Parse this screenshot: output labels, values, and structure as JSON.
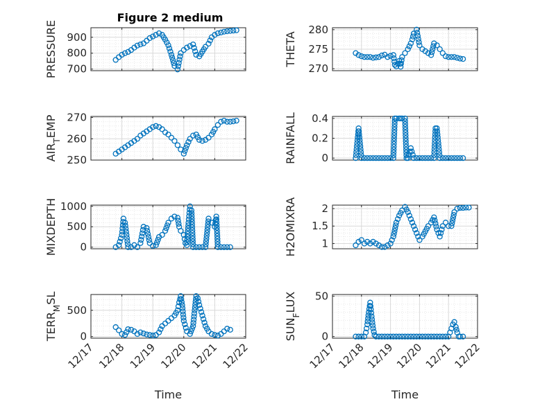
{
  "colors": {
    "marker": "#0072BD",
    "axis": "#262626",
    "grid": "#d9d9d9",
    "background": "#ffffff"
  },
  "chart_data": [
    {
      "type": "scatter",
      "title": "Figure 2 medium",
      "ylabel": "PRESSURE",
      "xlabel": "",
      "xlim": [
        "12/17",
        "12/22"
      ],
      "ylim": [
        690,
        960
      ],
      "yticks": [
        "700",
        "800",
        "900"
      ],
      "xticklabels_shown": false,
      "grid": "on",
      "x": [
        17.8,
        17.9,
        18.0,
        18.1,
        18.2,
        18.3,
        18.4,
        18.5,
        18.6,
        18.7,
        18.8,
        18.9,
        19.0,
        19.1,
        19.2,
        19.3,
        19.4,
        19.5,
        19.6,
        19.7,
        19.8,
        19.9,
        20.0,
        20.1,
        20.2,
        20.3,
        20.4,
        20.5,
        20.6,
        20.7,
        20.8,
        20.9,
        21.0,
        21.1,
        21.2,
        21.3,
        21.4,
        21.5,
        21.6,
        21.7
      ],
      "y": [
        758,
        775,
        790,
        800,
        808,
        820,
        835,
        848,
        855,
        862,
        878,
        895,
        905,
        915,
        925,
        915,
        885,
        850,
        790,
        720,
        698,
        800,
        820,
        835,
        845,
        855,
        790,
        780,
        810,
        840,
        860,
        900,
        915,
        925,
        930,
        935,
        938,
        940,
        942,
        944
      ]
    },
    {
      "type": "scatter",
      "ylabel": "THETA",
      "xlabel": "",
      "xlim": [
        "12/17",
        "12/22"
      ],
      "ylim": [
        269.5,
        280.5
      ],
      "yticks": [
        "270",
        "275",
        "280"
      ],
      "xticklabels_shown": false,
      "grid": "on",
      "x": [
        17.8,
        17.9,
        18.0,
        18.1,
        18.2,
        18.3,
        18.4,
        18.5,
        18.6,
        18.7,
        18.8,
        18.9,
        19.0,
        19.1,
        19.15,
        19.2,
        19.3,
        19.35,
        19.4,
        19.5,
        19.6,
        19.7,
        19.75,
        19.8,
        19.9,
        20.0,
        20.1,
        20.2,
        20.3,
        20.4,
        20.5,
        20.6,
        20.7,
        20.8,
        20.9,
        21.0,
        21.1,
        21.2,
        21.3,
        21.4,
        21.5
      ],
      "y": [
        274.0,
        273.5,
        273.2,
        273.0,
        273.0,
        273.0,
        272.8,
        272.9,
        273.0,
        273.4,
        273.6,
        273.0,
        273.3,
        273.5,
        271.0,
        270.6,
        272.0,
        270.5,
        273.0,
        274.0,
        275.0,
        276.5,
        277.5,
        279.0,
        280.0,
        276.0,
        275.0,
        274.5,
        274.0,
        273.5,
        276.5,
        276.0,
        275.0,
        274.0,
        273.2,
        273.0,
        273.0,
        273.0,
        272.8,
        272.6,
        272.5
      ]
    },
    {
      "type": "scatter",
      "ylabel": "AIR_TEMP",
      "xlabel": "",
      "xlim": [
        "12/17",
        "12/22"
      ],
      "ylim": [
        250,
        270.5
      ],
      "yticks": [
        "250",
        "260",
        "270"
      ],
      "xticklabels_shown": false,
      "grid": "on",
      "x": [
        17.8,
        17.9,
        18.0,
        18.1,
        18.2,
        18.3,
        18.4,
        18.5,
        18.6,
        18.7,
        18.8,
        18.9,
        19.0,
        19.1,
        19.2,
        19.3,
        19.4,
        19.5,
        19.6,
        19.7,
        19.8,
        19.9,
        20.0,
        20.1,
        20.2,
        20.3,
        20.4,
        20.5,
        20.6,
        20.7,
        20.8,
        20.9,
        21.0,
        21.1,
        21.2,
        21.3,
        21.4,
        21.5,
        21.6,
        21.7
      ],
      "y": [
        253.0,
        254.0,
        255.0,
        256.0,
        257.0,
        258.0,
        259.0,
        260.0,
        261.5,
        262.5,
        263.5,
        264.5,
        265.5,
        266.0,
        265.5,
        264.5,
        263.0,
        262.0,
        260.5,
        259.0,
        257.0,
        255.0,
        253.0,
        257.0,
        260.0,
        261.5,
        262.0,
        259.5,
        259.0,
        259.5,
        260.5,
        262.0,
        264.5,
        266.5,
        268.0,
        268.5,
        268.0,
        268.0,
        268.2,
        268.5
      ]
    },
    {
      "type": "scatter",
      "ylabel": "RAINFALL",
      "xlabel": "",
      "xlim": [
        "12/17",
        "12/22"
      ],
      "ylim": [
        -0.02,
        0.42
      ],
      "yticks": [
        "0",
        "0.2",
        "0.4"
      ],
      "xticklabels_shown": false,
      "grid": "on",
      "x": [
        17.8,
        17.9,
        18.0,
        18.1,
        18.2,
        18.3,
        18.4,
        18.5,
        18.6,
        18.7,
        18.8,
        18.9,
        19.0,
        19.1,
        19.15,
        19.2,
        19.3,
        19.35,
        19.4,
        19.5,
        19.55,
        19.6,
        19.7,
        19.8,
        19.9,
        20.0,
        20.1,
        20.2,
        20.3,
        20.4,
        20.5,
        20.55,
        20.6,
        20.7,
        20.8,
        20.9,
        21.0,
        21.1,
        21.2,
        21.3,
        21.4,
        21.5
      ],
      "y": [
        0,
        0.3,
        0,
        0,
        0,
        0,
        0,
        0,
        0,
        0,
        0,
        0,
        0,
        0,
        0.4,
        0.4,
        0.4,
        0.4,
        0.4,
        0.4,
        0,
        0,
        0.1,
        0,
        0,
        0,
        0,
        0,
        0,
        0,
        0,
        0.3,
        0.3,
        0,
        0,
        0,
        0,
        0,
        0,
        0,
        0,
        0
      ]
    },
    {
      "type": "scatter",
      "ylabel": "MIXDEPTH",
      "xlabel": "",
      "xlim": [
        "12/17",
        "12/22"
      ],
      "ylim": [
        -40,
        1030
      ],
      "yticks": [
        "0",
        "500",
        "1000"
      ],
      "xticklabels_shown": false,
      "grid": "on",
      "x": [
        17.8,
        17.9,
        18.0,
        18.05,
        18.1,
        18.15,
        18.2,
        18.3,
        18.4,
        18.5,
        18.6,
        18.7,
        18.8,
        18.9,
        19.0,
        19.1,
        19.2,
        19.3,
        19.4,
        19.5,
        19.6,
        19.7,
        19.8,
        19.85,
        19.9,
        20.0,
        20.05,
        20.1,
        20.15,
        20.2,
        20.25,
        20.3,
        20.4,
        20.5,
        20.6,
        20.7,
        20.8,
        20.9,
        21.0,
        21.05,
        21.1,
        21.2,
        21.3,
        21.4,
        21.5
      ],
      "y": [
        0,
        50,
        300,
        700,
        600,
        300,
        0,
        0,
        50,
        0,
        100,
        500,
        470,
        100,
        30,
        50,
        250,
        300,
        400,
        600,
        700,
        750,
        720,
        500,
        400,
        300,
        100,
        50,
        600,
        1000,
        900,
        0,
        0,
        0,
        0,
        0,
        700,
        600,
        500,
        750,
        0,
        0,
        0,
        0,
        0
      ]
    },
    {
      "type": "scatter",
      "ylabel": "H2OMIXRA",
      "xlabel": "",
      "xlim": [
        "12/17",
        "12/22"
      ],
      "ylim": [
        0.85,
        2.1
      ],
      "yticks": [
        "1",
        "1.5",
        "2"
      ],
      "xticklabels_shown": false,
      "grid": "on",
      "x": [
        17.8,
        17.9,
        18.0,
        18.1,
        18.2,
        18.3,
        18.4,
        18.5,
        18.6,
        18.7,
        18.8,
        18.9,
        19.0,
        19.1,
        19.2,
        19.3,
        19.4,
        19.5,
        19.6,
        19.7,
        19.8,
        19.9,
        20.0,
        20.1,
        20.2,
        20.3,
        20.4,
        20.5,
        20.6,
        20.7,
        20.8,
        20.9,
        21.0,
        21.1,
        21.2,
        21.3,
        21.4,
        21.5,
        21.6,
        21.7
      ],
      "y": [
        0.95,
        1.05,
        1.1,
        1.0,
        1.05,
        1.0,
        1.05,
        1.0,
        0.95,
        0.9,
        0.9,
        0.95,
        1.0,
        1.2,
        1.6,
        1.8,
        1.95,
        2.05,
        1.9,
        1.7,
        1.5,
        1.3,
        1.1,
        1.2,
        1.35,
        1.5,
        1.6,
        1.75,
        1.4,
        1.2,
        1.5,
        1.6,
        1.5,
        1.5,
        1.9,
        2.0,
        2.02,
        2.02,
        2.03,
        2.03
      ]
    },
    {
      "type": "scatter",
      "ylabel": "TERR_MSL",
      "xlabel": "Time",
      "xlim": [
        "12/17",
        "12/22"
      ],
      "xticks": [
        "12/17",
        "12/18",
        "12/19",
        "12/20",
        "12/21",
        "12/22"
      ],
      "ylim": [
        -30,
        800
      ],
      "yticks": [
        "0",
        "500"
      ],
      "grid": "on",
      "x": [
        17.8,
        17.9,
        18.0,
        18.1,
        18.2,
        18.3,
        18.4,
        18.5,
        18.6,
        18.7,
        18.8,
        18.9,
        19.0,
        19.1,
        19.2,
        19.3,
        19.4,
        19.5,
        19.6,
        19.7,
        19.8,
        19.85,
        19.9,
        19.95,
        20.0,
        20.1,
        20.2,
        20.3,
        20.35,
        20.4,
        20.45,
        20.5,
        20.6,
        20.7,
        20.8,
        20.9,
        21.0,
        21.1,
        21.2,
        21.3,
        21.4,
        21.5
      ],
      "y": [
        180,
        120,
        50,
        30,
        140,
        130,
        100,
        50,
        80,
        60,
        40,
        30,
        20,
        30,
        80,
        200,
        250,
        300,
        350,
        400,
        500,
        650,
        770,
        600,
        300,
        100,
        50,
        200,
        500,
        770,
        730,
        600,
        400,
        200,
        100,
        50,
        30,
        20,
        50,
        100,
        150,
        130
      ]
    },
    {
      "type": "scatter",
      "ylabel": "SUN_FLUX",
      "xlabel": "Time",
      "xlim": [
        "12/17",
        "12/22"
      ],
      "xticks": [
        "12/17",
        "12/18",
        "12/19",
        "12/20",
        "12/21",
        "12/22"
      ],
      "ylim": [
        -2,
        52
      ],
      "yticks": [
        "0",
        "50"
      ],
      "grid": "on",
      "x": [
        17.8,
        17.9,
        18.0,
        18.1,
        18.15,
        18.2,
        18.25,
        18.3,
        18.35,
        18.4,
        18.45,
        18.5,
        18.6,
        18.7,
        18.8,
        18.9,
        19.0,
        19.2,
        19.4,
        19.6,
        19.8,
        20.0,
        20.2,
        20.4,
        20.6,
        20.8,
        21.0,
        21.05,
        21.1,
        21.15,
        21.2,
        21.25,
        21.3,
        21.35,
        21.4,
        21.5
      ],
      "y": [
        0,
        0,
        0,
        0,
        5,
        15,
        30,
        42,
        25,
        10,
        2,
        0,
        0,
        0,
        0,
        0,
        0,
        0,
        0,
        0,
        0,
        0,
        0,
        0,
        0,
        0,
        0,
        5,
        10,
        15,
        18,
        12,
        5,
        0,
        0,
        0
      ]
    }
  ]
}
